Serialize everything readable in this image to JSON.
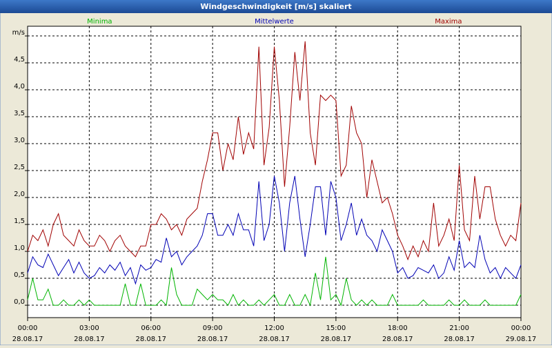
{
  "chart_data": {
    "type": "line",
    "title": "Windgeschwindigkeit [m/s] skaliert",
    "x": [
      0,
      0.25,
      0.5,
      0.75,
      1,
      1.25,
      1.5,
      1.75,
      2,
      2.25,
      2.5,
      2.75,
      3,
      3.25,
      3.5,
      3.75,
      4,
      4.25,
      4.5,
      4.75,
      5,
      5.25,
      5.5,
      5.75,
      6,
      6.25,
      6.5,
      6.75,
      7,
      7.25,
      7.5,
      7.75,
      8,
      8.25,
      8.5,
      8.75,
      9,
      9.25,
      9.5,
      9.75,
      10,
      10.25,
      10.5,
      10.75,
      11,
      11.25,
      11.5,
      11.75,
      12,
      12.25,
      12.5,
      12.75,
      13,
      13.25,
      13.5,
      13.75,
      14,
      14.25,
      14.5,
      14.75,
      15,
      15.25,
      15.5,
      15.75,
      16,
      16.25,
      16.5,
      16.75,
      17,
      17.25,
      17.5,
      17.75,
      18,
      18.25,
      18.5,
      18.75,
      19,
      19.25,
      19.5,
      19.75,
      20,
      20.25,
      20.5,
      20.75,
      21,
      21.25,
      21.5,
      21.75,
      22,
      22.25,
      22.5,
      22.75,
      23,
      23.25,
      23.5,
      23.75,
      24
    ],
    "series": [
      {
        "name": "Minima",
        "color": "#00b400",
        "values": [
          0.1,
          0.5,
          0.1,
          0.1,
          0.3,
          0.0,
          0.0,
          0.1,
          0.0,
          0.0,
          0.1,
          0.0,
          0.1,
          0.0,
          0.0,
          0.0,
          0.0,
          0.0,
          0.0,
          0.4,
          0.0,
          0.0,
          0.4,
          0.0,
          0.0,
          0.0,
          0.1,
          0.0,
          0.7,
          0.2,
          0.0,
          0.0,
          0.0,
          0.3,
          0.2,
          0.1,
          0.2,
          0.1,
          0.1,
          0.0,
          0.2,
          0.0,
          0.1,
          0.0,
          0.0,
          0.1,
          0.0,
          0.1,
          0.2,
          0.0,
          0.0,
          0.2,
          0.0,
          0.0,
          0.2,
          0.0,
          0.6,
          0.1,
          0.9,
          0.1,
          0.2,
          0.0,
          0.5,
          0.1,
          0.0,
          0.1,
          0.0,
          0.1,
          0.0,
          0.0,
          0.0,
          0.2,
          0.0,
          0.0,
          0.0,
          0.0,
          0.0,
          0.1,
          0.0,
          0.0,
          0.0,
          0.0,
          0.1,
          0.0,
          0.0,
          0.1,
          0.0,
          0.0,
          0.0,
          0.1,
          0.0,
          0.0,
          0.0,
          0.0,
          0.0,
          0.0,
          0.2
        ]
      },
      {
        "name": "Mittelwerte",
        "color": "#0000b4",
        "values": [
          0.6,
          0.9,
          0.75,
          0.7,
          0.95,
          0.75,
          0.55,
          0.7,
          0.85,
          0.6,
          0.8,
          0.6,
          0.5,
          0.55,
          0.7,
          0.6,
          0.75,
          0.65,
          0.8,
          0.55,
          0.7,
          0.4,
          0.75,
          0.65,
          0.7,
          0.85,
          0.8,
          1.25,
          0.9,
          1.0,
          0.75,
          0.9,
          1.0,
          1.1,
          1.3,
          1.7,
          1.7,
          1.3,
          1.3,
          1.5,
          1.3,
          1.7,
          1.4,
          1.4,
          1.1,
          2.3,
          1.2,
          1.5,
          2.4,
          1.9,
          1.0,
          1.9,
          2.4,
          1.6,
          0.9,
          1.5,
          2.2,
          2.2,
          1.3,
          2.3,
          2.0,
          1.2,
          1.5,
          1.9,
          1.3,
          1.6,
          1.3,
          1.2,
          1.0,
          1.4,
          1.2,
          1.0,
          0.6,
          0.7,
          0.5,
          0.55,
          0.7,
          0.65,
          0.6,
          0.75,
          0.5,
          0.6,
          0.9,
          0.65,
          1.2,
          0.7,
          0.8,
          0.7,
          1.3,
          0.85,
          0.6,
          0.7,
          0.5,
          0.7,
          0.6,
          0.5,
          0.75
        ]
      },
      {
        "name": "Maxima",
        "color": "#a00000",
        "values": [
          1.0,
          1.3,
          1.2,
          1.4,
          1.1,
          1.5,
          1.7,
          1.3,
          1.2,
          1.1,
          1.4,
          1.2,
          1.1,
          1.1,
          1.3,
          1.2,
          1.0,
          1.2,
          1.3,
          1.1,
          1.0,
          0.9,
          1.1,
          1.1,
          1.5,
          1.5,
          1.7,
          1.6,
          1.4,
          1.5,
          1.3,
          1.6,
          1.7,
          1.8,
          2.3,
          2.7,
          3.2,
          3.2,
          2.5,
          3.0,
          2.7,
          3.5,
          2.8,
          3.2,
          2.9,
          4.8,
          2.6,
          3.3,
          4.8,
          3.8,
          2.2,
          3.3,
          4.7,
          3.8,
          4.9,
          3.2,
          2.6,
          3.9,
          3.8,
          3.9,
          3.8,
          2.4,
          2.6,
          3.7,
          3.2,
          3.0,
          2.0,
          2.7,
          2.3,
          1.9,
          2.0,
          1.7,
          1.3,
          1.1,
          0.85,
          1.1,
          0.9,
          1.2,
          1.0,
          1.9,
          1.1,
          1.3,
          1.6,
          1.2,
          2.6,
          1.4,
          1.2,
          2.4,
          1.6,
          2.2,
          2.2,
          1.6,
          1.3,
          1.1,
          1.3,
          1.2,
          1.9
        ]
      }
    ],
    "xlim": [
      0,
      24
    ],
    "xticks": [
      {
        "value": 0,
        "label": [
          "00:00",
          "28.08.17"
        ]
      },
      {
        "value": 3,
        "label": [
          "03:00",
          "28.08.17"
        ]
      },
      {
        "value": 6,
        "label": [
          "06:00",
          "28.08.17"
        ]
      },
      {
        "value": 9,
        "label": [
          "09:00",
          "28.08.17"
        ]
      },
      {
        "value": 12,
        "label": [
          "12:00",
          "28.08.17"
        ]
      },
      {
        "value": 15,
        "label": [
          "15:00",
          "28.08.17"
        ]
      },
      {
        "value": 18,
        "label": [
          "18:00",
          "28.08.17"
        ]
      },
      {
        "value": 21,
        "label": [
          "21:00",
          "28.08.17"
        ]
      },
      {
        "value": 24,
        "label": [
          "00:00",
          "29.08.17"
        ]
      }
    ],
    "ylim": [
      -0.23,
      5.18
    ],
    "yticks": [
      {
        "value": 0,
        "label": "0,0"
      },
      {
        "value": 0.5,
        "label": "0,5"
      },
      {
        "value": 1,
        "label": "1,0"
      },
      {
        "value": 1.5,
        "label": "1,5"
      },
      {
        "value": 2,
        "label": "2,0"
      },
      {
        "value": 2.5,
        "label": "2,5"
      },
      {
        "value": 3,
        "label": "3,0"
      },
      {
        "value": 3.5,
        "label": "3,5"
      },
      {
        "value": 4,
        "label": "4,0"
      },
      {
        "value": 4.5,
        "label": "4,5"
      },
      {
        "value": 5,
        "label": "m/s"
      }
    ],
    "grid": true
  }
}
